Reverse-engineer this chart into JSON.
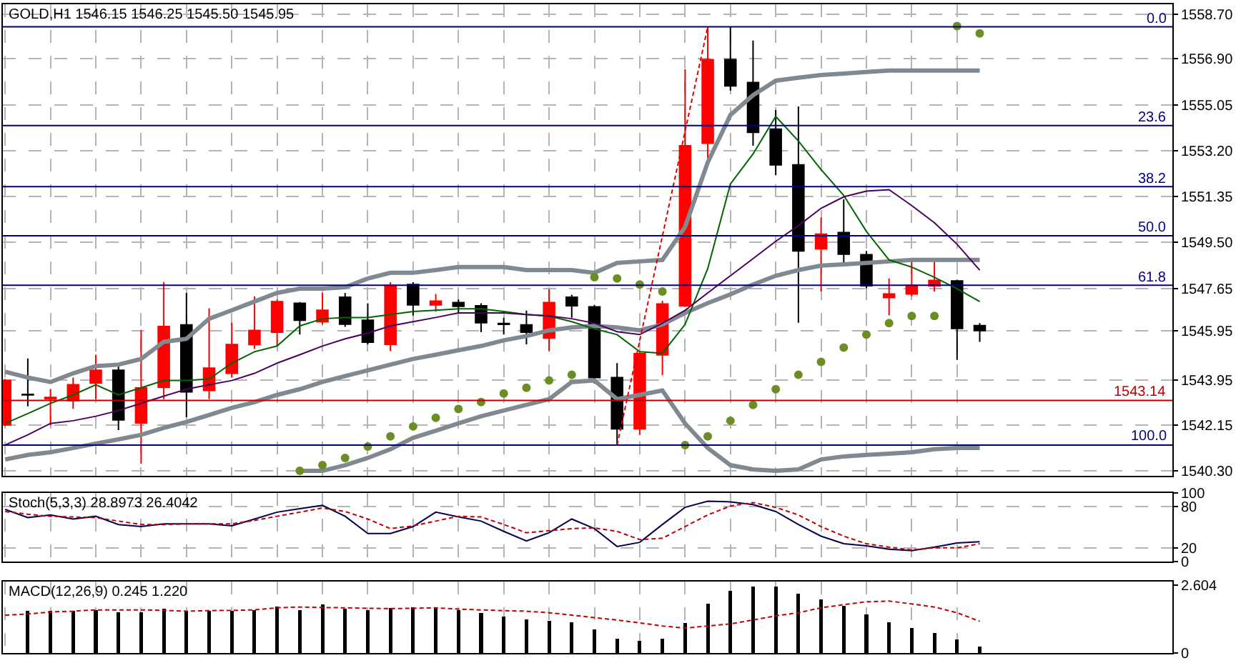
{
  "chart_data": [
    {
      "type": "candlestick",
      "title": "GOLD,H1 1546.15 1546.25 1545.50 1545.95",
      "categories": [
        null,
        null,
        null,
        null,
        null,
        null,
        null,
        null,
        null,
        null,
        null,
        null,
        null,
        null,
        null,
        null,
        null,
        null,
        null,
        null,
        null,
        null,
        null,
        null,
        null,
        null,
        null,
        null,
        null,
        null,
        null,
        null,
        null,
        null,
        null,
        null,
        null,
        null,
        null,
        null,
        null,
        null,
        null,
        null
      ],
      "ohlc": [
        [
          1542.15,
          1544.0,
          1542.1,
          1543.94
        ],
        [
          1543.38,
          1544.83,
          1542.9,
          1543.36
        ],
        [
          1543.2,
          1543.6,
          1542.13,
          1543.26
        ],
        [
          1543.13,
          1544.06,
          1542.8,
          1543.77
        ],
        [
          1543.84,
          1544.98,
          1543.19,
          1544.35
        ],
        [
          1544.35,
          1544.64,
          1541.94,
          1542.35
        ],
        [
          1542.23,
          1545.98,
          1540.59,
          1543.64
        ],
        [
          1543.67,
          1547.91,
          1543.19,
          1546.12
        ],
        [
          1546.18,
          1547.47,
          1542.46,
          1543.48
        ],
        [
          1543.54,
          1546.85,
          1543.19,
          1544.44
        ],
        [
          1544.23,
          1546.27,
          1544.06,
          1545.39
        ],
        [
          1545.39,
          1547.33,
          1545.21,
          1545.96
        ],
        [
          1545.89,
          1547.2,
          1545.33,
          1547.12
        ],
        [
          1547.05,
          1547.1,
          1545.79,
          1546.37
        ],
        [
          1546.31,
          1547.47,
          1546.2,
          1546.77
        ],
        [
          1547.3,
          1547.47,
          1546.1,
          1546.21
        ],
        [
          1546.37,
          1547.05,
          1545.4,
          1545.48
        ],
        [
          1545.4,
          1547.9,
          1545.12,
          1547.77
        ],
        [
          1547.81,
          1547.9,
          1546.56,
          1546.99
        ],
        [
          1546.99,
          1547.43,
          1546.72,
          1547.14
        ],
        [
          1547.08,
          1547.2,
          1546.66,
          1546.93
        ],
        [
          1546.95,
          1547.05,
          1545.89,
          1546.27
        ],
        [
          1546.24,
          1546.47,
          1545.79,
          1546.2
        ],
        [
          1546.18,
          1546.76,
          1545.4,
          1545.89
        ],
        [
          1545.65,
          1547.62,
          1545.12,
          1547.08
        ],
        [
          1547.3,
          1547.4,
          1546.47,
          1546.95
        ],
        [
          1546.91,
          1546.99,
          1543.81,
          1544.06
        ],
        [
          1544.06,
          1544.64,
          1541.34,
          1541.99
        ],
        [
          1541.99,
          1545.1,
          1541.75,
          1545.02
        ],
        [
          1544.97,
          1547.15,
          1544.16,
          1547.02
        ],
        [
          1546.95,
          1556.48,
          1546.9,
          1553.4
        ],
        [
          1553.5,
          1558.19,
          1552.73,
          1556.87
        ],
        [
          1556.87,
          1558.19,
          1555.62,
          1555.81
        ],
        [
          1555.95,
          1557.64,
          1553.4,
          1553.94
        ],
        [
          1554.07,
          1554.84,
          1552.21,
          1552.63
        ],
        [
          1552.63,
          1554.98,
          1546.27,
          1549.16
        ],
        [
          1549.25,
          1550.51,
          1547.53,
          1549.84
        ],
        [
          1549.9,
          1551.24,
          1548.58,
          1549.03
        ],
        [
          1549.01,
          1549.16,
          1547.66,
          1547.76
        ],
        [
          1547.28,
          1548.05,
          1546.56,
          1547.43
        ],
        [
          1547.43,
          1548.87,
          1547.33,
          1547.77
        ],
        [
          1547.76,
          1548.87,
          1547.53,
          1547.97
        ],
        [
          1547.95,
          1548.0,
          1544.77,
          1546.04
        ],
        [
          1546.15,
          1546.25,
          1545.5,
          1545.95
        ]
      ],
      "colors": [
        "#ff0000",
        "#000000",
        "#ff0000",
        "#ff0000",
        "#ff0000",
        "#000000",
        "#ff0000",
        "#ff0000",
        "#000000",
        "#ff0000",
        "#ff0000",
        "#ff0000",
        "#ff0000",
        "#000000",
        "#ff0000",
        "#000000",
        "#000000",
        "#ff0000",
        "#000000",
        "#ff0000",
        "#000000",
        "#000000",
        "#000000",
        "#000000",
        "#ff0000",
        "#000000",
        "#000000",
        "#000000",
        "#ff0000",
        "#ff0000",
        "#ff0000",
        "#ff0000",
        "#000000",
        "#000000",
        "#000000",
        "#000000",
        "#ff0000",
        "#000000",
        "#000000",
        "#ff0000",
        "#ff0000",
        "#ff0000",
        "#000000",
        "#000000"
      ],
      "series": [
        {
          "type": "line",
          "color": "#808890",
          "values": [
            1544.29,
            1544.06,
            1543.88,
            1544.23,
            1544.52,
            1544.58,
            1544.81,
            1545.5,
            1545.62,
            1546.43,
            1546.77,
            1547.12,
            1547.47,
            1547.64,
            1547.64,
            1547.7,
            1548.05,
            1548.28,
            1548.28,
            1548.39,
            1548.51,
            1548.51,
            1548.51,
            1548.39,
            1548.39,
            1548.39,
            1548.28,
            1548.68,
            1548.74,
            1548.8,
            1550.13,
            1552.73,
            1554.64,
            1555.44,
            1556.02,
            1556.14,
            1556.25,
            1556.31,
            1556.37,
            1556.43,
            1556.43,
            1556.43,
            1556.43,
            1556.43
          ]
        },
        {
          "type": "line",
          "color": "#808890",
          "values": [
            1540.76,
            1540.94,
            1541.05,
            1541.22,
            1541.4,
            1541.57,
            1541.75,
            1542.03,
            1542.27,
            1542.55,
            1542.84,
            1543.07,
            1543.36,
            1543.59,
            1543.88,
            1544.12,
            1544.35,
            1544.58,
            1544.81,
            1544.98,
            1545.16,
            1545.33,
            1545.56,
            1545.73,
            1545.96,
            1546.08,
            1546.14,
            1546.08,
            1545.96,
            1546.2,
            1546.66,
            1547.06,
            1547.41,
            1547.81,
            1548.16,
            1548.39,
            1548.57,
            1548.62,
            1548.68,
            1548.74,
            1548.8,
            1548.8,
            1548.8,
            1548.8
          ]
        },
        {
          "type": "line",
          "color": "#808890",
          "values": [
            null,
            null,
            null,
            null,
            null,
            null,
            null,
            null,
            null,
            null,
            null,
            null,
            null,
            1540.3,
            1540.3,
            1540.53,
            1540.82,
            1541.17,
            1541.63,
            1541.92,
            1542.21,
            1542.5,
            1542.73,
            1542.96,
            1543.19,
            1543.88,
            1543.94,
            1543.19,
            1543.36,
            1543.54,
            1542.21,
            1541.22,
            1540.53,
            1540.36,
            1540.3,
            1540.36,
            1540.76,
            1540.88,
            1540.94,
            1540.99,
            1541.05,
            1541.17,
            1541.22,
            1541.22
          ]
        },
        {
          "type": "line",
          "color": "#006400",
          "values": [
            1542.21,
            1542.61,
            1543.02,
            1543.36,
            1543.77,
            1543.36,
            1543.65,
            1543.94,
            1543.94,
            1544.0,
            1544.64,
            1545.1,
            1545.33,
            1546.14,
            1546.43,
            1546.48,
            1546.48,
            1546.6,
            1546.72,
            1546.77,
            1546.83,
            1546.83,
            1546.72,
            1546.6,
            1546.54,
            1546.31,
            1546.02,
            1545.79,
            1545.1,
            1545.04,
            1546.2,
            1548.45,
            1551.86,
            1553.07,
            1554.58,
            1553.59,
            1552.44,
            1551.4,
            1549.95,
            1548.8,
            1548.51,
            1548.1,
            1547.64,
            1547.12
          ]
        },
        {
          "type": "line",
          "color": "#4b0060",
          "values": [
            1541.34,
            1541.75,
            1542.21,
            1542.32,
            1542.5,
            1542.73,
            1543.02,
            1543.31,
            1543.59,
            1543.77,
            1543.94,
            1544.23,
            1544.64,
            1544.98,
            1545.33,
            1545.62,
            1545.85,
            1546.14,
            1546.31,
            1546.48,
            1546.66,
            1546.66,
            1546.66,
            1546.6,
            1546.54,
            1546.43,
            1546.25,
            1545.91,
            1545.79,
            1546.25,
            1546.77,
            1547.47,
            1548.16,
            1548.85,
            1549.55,
            1550.18,
            1550.88,
            1551.34,
            1551.57,
            1551.63,
            1550.99,
            1550.3,
            1549.43,
            1548.39
          ]
        },
        {
          "type": "line",
          "color": "#e00000",
          "line_style": "dashed",
          "values": [
            null,
            null,
            null,
            null,
            null,
            null,
            null,
            null,
            null,
            null,
            null,
            null,
            null,
            null,
            null,
            null,
            null,
            null,
            null,
            null,
            null,
            null,
            null,
            null,
            null,
            null,
            null,
            1541.34,
            1545.55,
            1549.76,
            1553.98,
            1558.19,
            null,
            null,
            null,
            null,
            null,
            null,
            null,
            null,
            null,
            null,
            null,
            null
          ]
        },
        {
          "type": "scatter",
          "color": "#6b8e23",
          "marker": "circle",
          "values": [
            null,
            null,
            null,
            null,
            null,
            null,
            null,
            null,
            null,
            null,
            null,
            null,
            null,
            1540.3,
            1540.53,
            1540.82,
            1541.28,
            1541.69,
            1542.09,
            1542.44,
            1542.79,
            1543.07,
            1543.42,
            1543.65,
            1543.94,
            1544.17,
            1548.1,
            1548.05,
            1547.81,
            1547.53,
            1541.34,
            1541.69,
            1542.32,
            1542.96,
            1543.59,
            1544.17,
            1544.69,
            1545.27,
            1545.79,
            1546.25,
            1546.54,
            1546.54,
            1558.22,
            1557.93
          ]
        }
      ],
      "ylim": [
        1540.1,
        1559.1
      ],
      "yticks": [
        {
          "value": 1540.3,
          "label": "1540.30"
        },
        1542.15,
        1543.95,
        1545.95,
        1547.65,
        {
          "value": 1549.5,
          "label": "1549.50"
        },
        1551.35,
        {
          "value": 1553.2,
          "label": "1553.20"
        },
        1555.05,
        {
          "value": 1556.9,
          "label": "1556.90"
        },
        {
          "value": 1558.7,
          "label": "1558.70"
        }
      ],
      "ref_lines": [
        {
          "axis": "y",
          "value": 1558.19,
          "color": "#000080"
        },
        {
          "axis": "y",
          "value": 1554.21,
          "color": "#000080"
        },
        {
          "axis": "y",
          "value": 1551.75,
          "color": "#000080"
        },
        {
          "axis": "y",
          "value": 1549.77,
          "color": "#000080"
        },
        {
          "axis": "y",
          "value": 1547.78,
          "color": "#000080"
        },
        {
          "axis": "y",
          "value": 1541.34,
          "color": "#000080"
        },
        {
          "axis": "y",
          "value": 1543.14,
          "label": "1543.14",
          "color": "#c00000"
        }
      ],
      "annotations": [
        {
          "text": "0.0",
          "y": 1558.19
        },
        {
          "text": "23.6",
          "y": 1554.21
        },
        {
          "text": "38.2",
          "y": 1551.75
        },
        {
          "text": "50.0",
          "y": 1549.77
        },
        {
          "text": "61.8",
          "y": 1547.78
        },
        {
          "text": "100.0",
          "y": 1541.34
        }
      ],
      "grid": true,
      "tick_labels": "y"
    },
    {
      "type": "line",
      "title": "Stoch(5,3,3) 28.8973 26.4042",
      "categories": [
        null,
        null,
        null,
        null,
        null,
        null,
        null,
        null,
        null,
        null,
        null,
        null,
        null,
        null,
        null,
        null,
        null,
        null,
        null,
        null,
        null,
        null,
        null,
        null,
        null,
        null,
        null,
        null,
        null,
        null,
        null,
        null,
        null,
        null,
        null,
        null,
        null,
        null,
        null,
        null,
        null,
        null,
        null,
        null
      ],
      "series": [
        {
          "color": "#000050",
          "values": [
            76,
            64,
            68,
            62,
            66,
            54,
            51,
            55,
            55,
            55,
            52,
            62,
            72,
            77,
            82,
            66,
            41,
            41,
            51,
            72,
            65,
            59,
            44,
            30,
            42,
            62,
            48,
            22,
            28,
            54,
            79,
            88,
            87,
            83,
            73,
            54,
            37,
            26,
            23,
            18,
            16,
            21,
            27,
            29
          ]
        },
        {
          "color": "#c00000",
          "line_style": "dashed",
          "values": [
            73,
            69,
            66,
            65,
            64,
            59,
            54,
            54,
            55,
            55,
            55,
            60,
            66,
            72,
            78,
            73,
            62,
            48,
            52,
            59,
            66,
            65,
            54,
            42,
            45,
            48,
            49,
            44,
            32,
            34,
            51,
            68,
            81,
            86,
            79,
            68,
            51,
            37,
            26,
            21,
            17,
            20,
            20,
            26
          ]
        }
      ],
      "ylim": [
        0,
        100
      ],
      "yticks": [
        0,
        20,
        80,
        100
      ],
      "grid": true,
      "tick_labels": "y"
    },
    {
      "type": "bar",
      "title": "MACD(12,26,9) 0.245 1.220",
      "categories": [
        null,
        null,
        null,
        null,
        null,
        null,
        null,
        null,
        null,
        null,
        null,
        null,
        null,
        null,
        null,
        null,
        null,
        null,
        null,
        null,
        null,
        null,
        null,
        null,
        null,
        null,
        null,
        null,
        null,
        null,
        null,
        null,
        null,
        null,
        null,
        null,
        null,
        null,
        null,
        null,
        null,
        null,
        null,
        null
      ],
      "series": [
        {
          "color": "#000000",
          "values": [
            null,
            1.61,
            1.61,
            1.63,
            1.66,
            1.58,
            1.58,
            1.71,
            1.61,
            1.61,
            1.63,
            1.66,
            1.8,
            1.66,
            1.86,
            1.71,
            1.66,
            1.74,
            1.77,
            1.74,
            1.66,
            1.55,
            1.4,
            1.3,
            1.24,
            1.19,
            0.91,
            0.54,
            0.47,
            0.54,
            1.16,
            1.91,
            2.39,
            2.56,
            2.56,
            2.28,
            2.05,
            1.81,
            1.49,
            1.19,
            0.96,
            0.78,
            0.51,
            0.245
          ]
        },
        {
          "type": "line",
          "color": "#c00000",
          "line_style": "dashed",
          "values": [
            1.46,
            1.5,
            1.58,
            1.61,
            1.66,
            1.66,
            1.66,
            1.64,
            1.61,
            1.63,
            1.64,
            1.66,
            1.74,
            1.77,
            1.75,
            1.74,
            1.72,
            1.71,
            1.72,
            1.74,
            1.69,
            1.66,
            1.63,
            1.61,
            1.55,
            1.46,
            1.36,
            1.27,
            1.16,
            1.04,
            0.96,
            1.04,
            1.12,
            1.27,
            1.43,
            1.55,
            1.74,
            1.86,
            1.97,
            2.0,
            1.89,
            1.77,
            1.55,
            1.22
          ]
        }
      ],
      "ylim": [
        0,
        2.75
      ],
      "yticks": [
        0,
        2.604
      ],
      "grid": "x",
      "tick_labels": "y"
    }
  ]
}
